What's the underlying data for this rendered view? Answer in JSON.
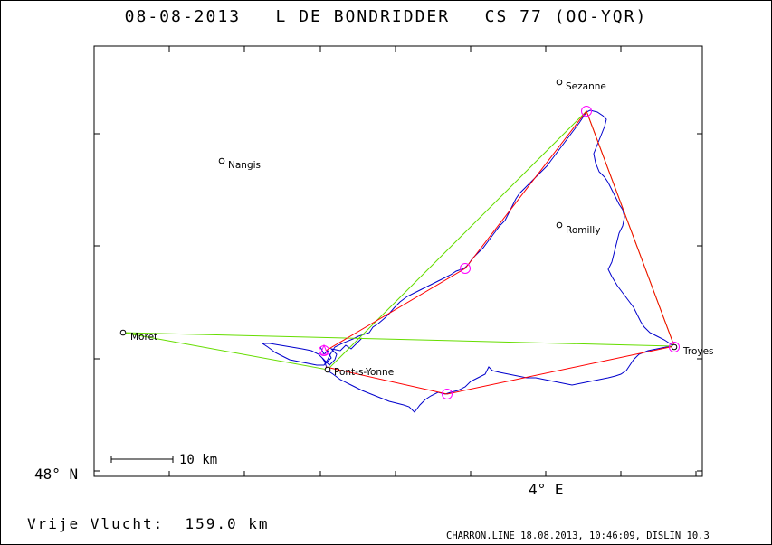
{
  "title": "08-08-2013   L DE BONDRIDDER   CS 77 (OO-YQR)",
  "axes": {
    "y_label": "48° N",
    "x_label": "4° E"
  },
  "scale_bar": {
    "label": "10 km",
    "distance_km": 10
  },
  "footer": {
    "distance_text": "Vrije Vlucht:  159.0 km",
    "info_text": "CHARRON.LINE 18.08.2013, 10:46:09, DISLIN 10.3"
  },
  "colors": {
    "track": "#0000cc",
    "task_line": "#ff0000",
    "free_flight_line": "#66dd00",
    "turnpoint_circle": "#ff00ff",
    "town_marker": "#000000"
  },
  "towns": [
    {
      "name": "Sezanne",
      "key": "sezanne"
    },
    {
      "name": "Nangis",
      "key": "nangis"
    },
    {
      "name": "Romilly",
      "key": "romilly"
    },
    {
      "name": "Moret",
      "key": "moret"
    },
    {
      "name": "Pont-s-Yonne",
      "key": "pont"
    },
    {
      "name": "Troyes",
      "key": "troyes"
    }
  ]
}
